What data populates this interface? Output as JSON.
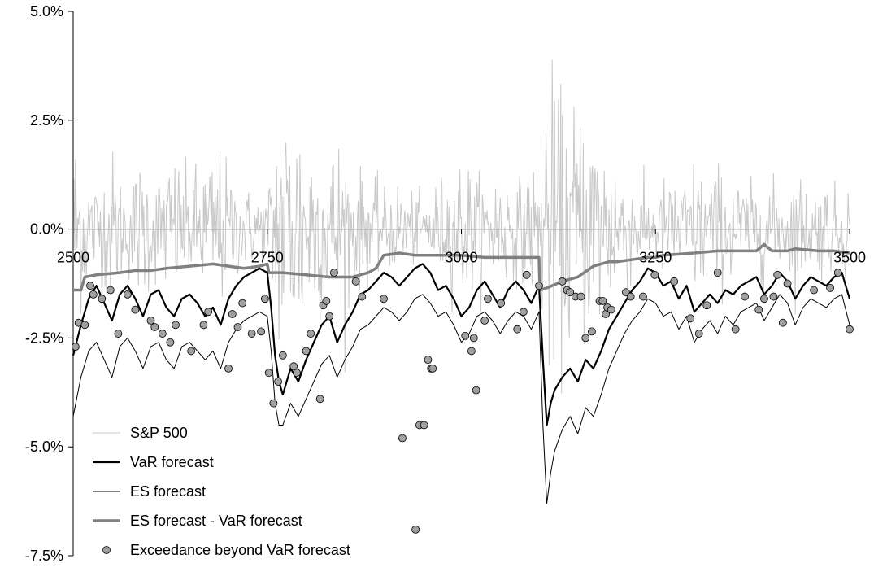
{
  "chart_data": {
    "type": "line",
    "title": "",
    "xlabel": "",
    "ylabel": "",
    "xlim": [
      2500,
      3500
    ],
    "ylim": [
      -7.5,
      5.0
    ],
    "x_ticks": [
      2500,
      2750,
      3000,
      3250,
      3500
    ],
    "x_tick_labels": [
      "2500",
      "2750",
      "3000",
      "3250",
      "3500"
    ],
    "y_ticks": [
      5.0,
      2.5,
      0.0,
      -2.5,
      -5.0,
      -7.5
    ],
    "y_tick_labels": [
      "5.0%",
      "2.5%",
      "0.0%",
      "-2.5%",
      "-5.0%",
      "-7.5%"
    ],
    "grid": false,
    "legend_position": "bottom-left",
    "legend": [
      {
        "label": "S&P 500",
        "color": "#c8c8c8",
        "style": "line-thin"
      },
      {
        "label": "VaR forecast",
        "color": "#000000",
        "style": "line-thick"
      },
      {
        "label": "ES forecast",
        "color": "#000000",
        "style": "line-thin"
      },
      {
        "label": "ES forecast - VaR forecast",
        "color": "#808080",
        "style": "line-thick"
      },
      {
        "label": "Exceedance beyond VaR forecast",
        "color": "#a0a0a0",
        "style": "marker"
      }
    ],
    "series": [
      {
        "name": "VaR forecast",
        "x": [
          2500,
          2510,
          2520,
          2530,
          2540,
          2550,
          2560,
          2570,
          2580,
          2590,
          2600,
          2610,
          2620,
          2630,
          2640,
          2650,
          2660,
          2670,
          2680,
          2690,
          2700,
          2710,
          2720,
          2730,
          2740,
          2750,
          2755,
          2760,
          2765,
          2770,
          2780,
          2790,
          2800,
          2810,
          2820,
          2830,
          2840,
          2850,
          2860,
          2870,
          2880,
          2890,
          2900,
          2910,
          2920,
          2930,
          2940,
          2950,
          2960,
          2970,
          2980,
          2990,
          3000,
          3010,
          3020,
          3030,
          3040,
          3050,
          3060,
          3070,
          3080,
          3090,
          3100,
          3105,
          3110,
          3115,
          3120,
          3130,
          3140,
          3150,
          3160,
          3170,
          3180,
          3190,
          3200,
          3210,
          3220,
          3230,
          3240,
          3250,
          3260,
          3270,
          3280,
          3290,
          3300,
          3310,
          3320,
          3330,
          3340,
          3350,
          3360,
          3370,
          3380,
          3390,
          3400,
          3410,
          3420,
          3430,
          3440,
          3450,
          3460,
          3470,
          3480,
          3490,
          3500
        ],
        "y": [
          -2.9,
          -2.2,
          -1.6,
          -1.3,
          -1.7,
          -2.1,
          -1.5,
          -1.3,
          -1.6,
          -2.0,
          -1.5,
          -1.4,
          -1.8,
          -2.0,
          -1.6,
          -1.5,
          -1.7,
          -2.0,
          -1.8,
          -2.2,
          -1.6,
          -1.3,
          -1.1,
          -1.0,
          -0.9,
          -1.0,
          -1.8,
          -2.9,
          -3.5,
          -3.8,
          -3.2,
          -3.5,
          -3.0,
          -2.6,
          -2.2,
          -2.0,
          -2.6,
          -2.2,
          -1.9,
          -1.5,
          -1.4,
          -1.2,
          -1.0,
          -1.1,
          -1.3,
          -1.1,
          -0.9,
          -0.8,
          -1.0,
          -1.4,
          -1.3,
          -1.6,
          -2.0,
          -1.8,
          -1.4,
          -1.2,
          -1.5,
          -1.8,
          -1.4,
          -1.2,
          -1.4,
          -1.7,
          -1.3,
          -3.0,
          -4.5,
          -4.0,
          -3.7,
          -3.4,
          -3.2,
          -3.5,
          -3.0,
          -3.2,
          -2.8,
          -2.3,
          -2.0,
          -1.7,
          -1.4,
          -1.2,
          -0.9,
          -1.0,
          -1.3,
          -1.2,
          -1.6,
          -1.3,
          -1.9,
          -1.7,
          -1.5,
          -1.7,
          -1.4,
          -1.5,
          -1.3,
          -1.2,
          -1.1,
          -1.5,
          -1.3,
          -1.0,
          -1.2,
          -1.6,
          -1.3,
          -1.1,
          -1.2,
          -1.3,
          -1.1,
          -1.0,
          -1.6
        ]
      },
      {
        "name": "ES forecast",
        "x": [
          2500,
          2510,
          2520,
          2530,
          2540,
          2550,
          2560,
          2570,
          2580,
          2590,
          2600,
          2610,
          2620,
          2630,
          2640,
          2650,
          2660,
          2670,
          2680,
          2690,
          2700,
          2710,
          2720,
          2730,
          2740,
          2750,
          2755,
          2760,
          2765,
          2770,
          2780,
          2790,
          2800,
          2810,
          2820,
          2830,
          2840,
          2850,
          2860,
          2870,
          2880,
          2890,
          2900,
          2910,
          2920,
          2930,
          2940,
          2950,
          2960,
          2970,
          2980,
          2990,
          3000,
          3010,
          3020,
          3030,
          3040,
          3050,
          3060,
          3070,
          3080,
          3090,
          3100,
          3105,
          3110,
          3115,
          3120,
          3130,
          3140,
          3150,
          3160,
          3170,
          3180,
          3190,
          3200,
          3210,
          3220,
          3230,
          3240,
          3250,
          3260,
          3270,
          3280,
          3290,
          3300,
          3310,
          3320,
          3330,
          3340,
          3350,
          3360,
          3370,
          3380,
          3390,
          3400,
          3410,
          3420,
          3430,
          3440,
          3450,
          3460,
          3470,
          3480,
          3490,
          3500
        ],
        "y": [
          -4.3,
          -3.4,
          -2.8,
          -2.6,
          -3.0,
          -3.4,
          -2.7,
          -2.5,
          -2.8,
          -3.2,
          -2.7,
          -2.6,
          -3.0,
          -3.2,
          -2.7,
          -2.6,
          -2.8,
          -3.0,
          -2.8,
          -3.2,
          -2.6,
          -2.3,
          -2.1,
          -2.0,
          -1.9,
          -2.0,
          -2.8,
          -4.0,
          -4.5,
          -4.5,
          -4.0,
          -4.3,
          -3.9,
          -3.5,
          -3.1,
          -2.9,
          -3.4,
          -3.0,
          -2.7,
          -2.3,
          -2.2,
          -2.0,
          -1.8,
          -1.9,
          -2.1,
          -1.9,
          -1.6,
          -1.5,
          -1.7,
          -2.0,
          -1.9,
          -2.2,
          -2.6,
          -2.4,
          -2.0,
          -1.9,
          -2.1,
          -2.4,
          -2.1,
          -1.9,
          -2.0,
          -2.3,
          -1.9,
          -4.5,
          -6.3,
          -5.6,
          -5.1,
          -4.6,
          -4.3,
          -4.7,
          -4.1,
          -4.3,
          -3.8,
          -3.2,
          -2.8,
          -2.4,
          -2.1,
          -1.9,
          -1.6,
          -1.7,
          -2.0,
          -1.9,
          -2.3,
          -2.0,
          -2.6,
          -2.3,
          -2.1,
          -2.4,
          -2.0,
          -2.2,
          -1.9,
          -1.8,
          -1.7,
          -2.1,
          -1.8,
          -1.5,
          -1.7,
          -2.2,
          -1.8,
          -1.6,
          -1.7,
          -1.8,
          -1.6,
          -1.5,
          -2.2
        ]
      },
      {
        "name": "ES forecast - VaR forecast",
        "x": [
          2500,
          2510,
          2515,
          2530,
          2560,
          2580,
          2600,
          2620,
          2650,
          2680,
          2700,
          2720,
          2740,
          2750,
          2752,
          2770,
          2800,
          2830,
          2860,
          2880,
          2890,
          2900,
          2920,
          2940,
          2960,
          2990,
          3000,
          3030,
          3060,
          3090,
          3100,
          3101,
          3110,
          3130,
          3150,
          3170,
          3180,
          3190,
          3200,
          3220,
          3240,
          3250,
          3260,
          3300,
          3330,
          3360,
          3380,
          3390,
          3400,
          3420,
          3430,
          3460,
          3480,
          3500
        ],
        "y": [
          -1.4,
          -1.4,
          -1.1,
          -1.05,
          -1.0,
          -0.95,
          -0.95,
          -0.9,
          -0.85,
          -0.8,
          -0.85,
          -0.9,
          -0.85,
          -0.8,
          -1.0,
          -1.0,
          -1.05,
          -1.1,
          -1.1,
          -1.0,
          -0.9,
          -0.6,
          -0.55,
          -0.6,
          -0.6,
          -0.6,
          -0.6,
          -0.65,
          -0.65,
          -0.65,
          -0.65,
          -1.4,
          -1.35,
          -1.2,
          -1.1,
          -0.85,
          -0.8,
          -0.75,
          -0.75,
          -0.7,
          -0.65,
          -0.65,
          -0.6,
          -0.55,
          -0.5,
          -0.5,
          -0.5,
          -0.35,
          -0.5,
          -0.5,
          -0.45,
          -0.5,
          -0.5,
          -0.55
        ]
      },
      {
        "name": "Exceedance beyond VaR forecast",
        "x": [
          2503,
          2507,
          2515,
          2522,
          2526,
          2537,
          2548,
          2558,
          2570,
          2580,
          2600,
          2605,
          2615,
          2625,
          2632,
          2652,
          2668,
          2674,
          2700,
          2705,
          2712,
          2718,
          2730,
          2742,
          2747,
          2752,
          2758,
          2764,
          2770,
          2784,
          2788,
          2800,
          2806,
          2818,
          2822,
          2826,
          2830,
          2836,
          2864,
          2872,
          2900,
          2924,
          2941,
          2946,
          2952,
          2957,
          2961,
          2963,
          3005,
          3013,
          3016,
          3019,
          3030,
          3034,
          3051,
          3072,
          3080,
          3084,
          3100,
          3130,
          3136,
          3140,
          3147,
          3154,
          3160,
          3168,
          3178,
          3182,
          3186,
          3188,
          3193,
          3212,
          3218,
          3234,
          3249,
          3274,
          3295,
          3306,
          3316,
          3330,
          3353,
          3365,
          3383,
          3390,
          3402,
          3407,
          3414,
          3420,
          3454,
          3475,
          3485,
          3500
        ],
        "y": [
          -2.7,
          -2.15,
          -2.2,
          -1.3,
          -1.5,
          -1.6,
          -1.4,
          -2.4,
          -1.5,
          -1.85,
          -2.1,
          -2.25,
          -2.4,
          -2.6,
          -2.2,
          -2.8,
          -2.2,
          -1.9,
          -3.2,
          -1.95,
          -2.25,
          -1.7,
          -2.4,
          -2.35,
          -1.6,
          -3.3,
          -4.0,
          -3.5,
          -2.9,
          -3.15,
          -3.3,
          -2.8,
          -2.4,
          -3.9,
          -1.75,
          -1.65,
          -2.0,
          -1.0,
          -1.2,
          -1.55,
          -1.6,
          -4.8,
          -6.9,
          -4.5,
          -4.5,
          -3.0,
          -3.2,
          -3.2,
          -2.45,
          -2.8,
          -2.5,
          -3.7,
          -2.1,
          -1.6,
          -1.7,
          -2.3,
          -1.9,
          -1.05,
          -1.3,
          -1.2,
          -1.4,
          -1.45,
          -1.55,
          -1.55,
          -2.5,
          -2.35,
          -1.65,
          -1.65,
          -1.95,
          -1.8,
          -1.85,
          -1.45,
          -1.55,
          -1.55,
          -1.05,
          -1.2,
          -2.05,
          -2.4,
          -1.75,
          -1.0,
          -2.3,
          -1.55,
          -1.85,
          -1.6,
          -1.55,
          -1.05,
          -2.15,
          -1.25,
          -1.4,
          -1.35,
          -1.0,
          -2.3
        ]
      }
    ]
  }
}
